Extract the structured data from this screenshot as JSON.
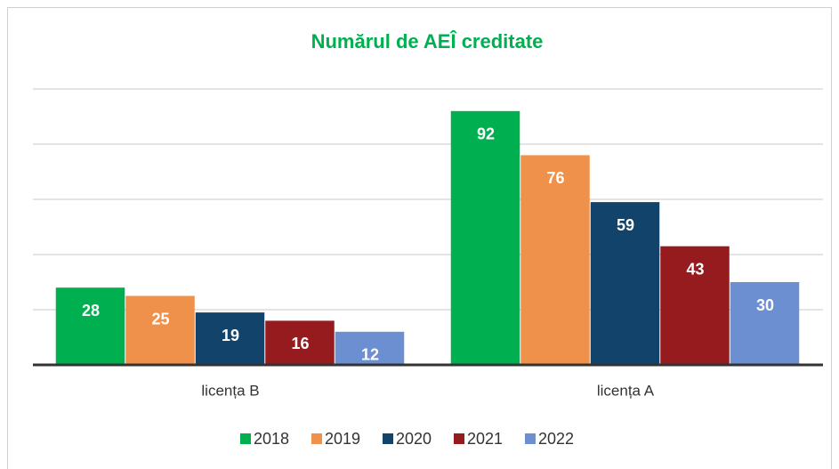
{
  "chart_data": {
    "type": "bar",
    "title": "Numărul de AEÎ creditate",
    "categories": [
      "licența B",
      "licența A"
    ],
    "series": [
      {
        "name": "2018",
        "color": "#00b050",
        "values": [
          28,
          92
        ]
      },
      {
        "name": "2019",
        "color": "#f0914b",
        "values": [
          25,
          76
        ]
      },
      {
        "name": "2020",
        "color": "#12436a",
        "values": [
          19,
          59
        ]
      },
      {
        "name": "2021",
        "color": "#961b1e",
        "values": [
          16,
          43
        ]
      },
      {
        "name": "2022",
        "color": "#6b8fd1",
        "values": [
          12,
          30
        ]
      }
    ],
    "ylim": [
      0,
      100
    ],
    "yticks": [
      0,
      20,
      40,
      60,
      80,
      100
    ],
    "grid": true,
    "legend": "bottom"
  }
}
